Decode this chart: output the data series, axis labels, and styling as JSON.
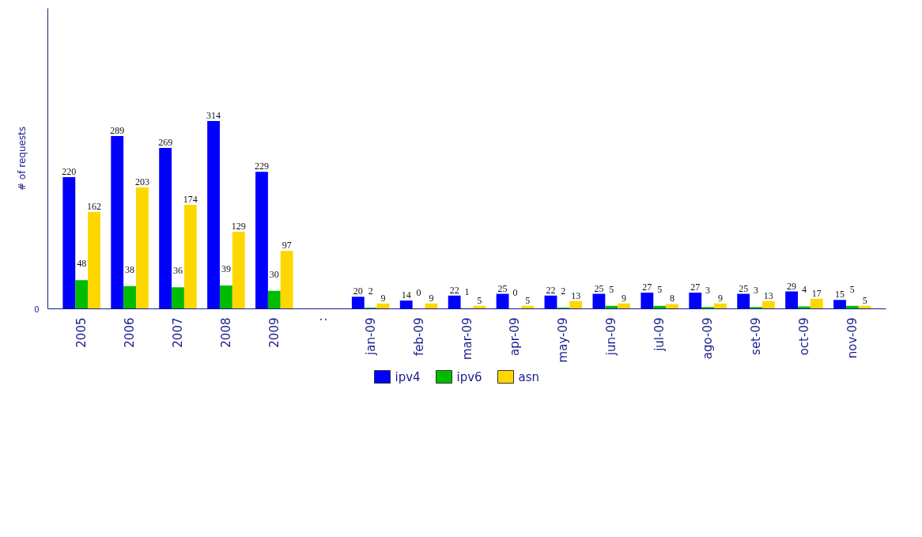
{
  "chart_data": {
    "type": "bar",
    "ylabel": "# of requests",
    "categories": [
      "2005",
      "2006",
      "2007",
      "2008",
      "2009",
      null,
      "jan-09",
      "feb-09",
      "mar-09",
      "apr-09",
      "may-09",
      "jun-09",
      "jul-09",
      "ago-09",
      "set-09",
      "oct-09",
      "nov-09"
    ],
    "series": [
      {
        "name": "ipv4",
        "color": "#0000ff",
        "values": [
          220,
          289,
          269,
          314,
          229,
          null,
          20,
          14,
          22,
          25,
          22,
          25,
          27,
          27,
          25,
          29,
          15
        ]
      },
      {
        "name": "ipv6",
        "color": "#00bb00",
        "values": [
          48,
          38,
          36,
          39,
          30,
          null,
          2,
          0,
          1,
          0,
          2,
          5,
          5,
          3,
          3,
          4,
          5
        ]
      },
      {
        "name": "asn",
        "color": "#ffd700",
        "values": [
          162,
          203,
          174,
          129,
          97,
          null,
          9,
          9,
          5,
          5,
          13,
          9,
          8,
          9,
          13,
          17,
          5
        ]
      }
    ],
    "annotations": [
      ":",
      "0"
    ],
    "data_labels": true,
    "grid": false,
    "legend": "bottom"
  }
}
